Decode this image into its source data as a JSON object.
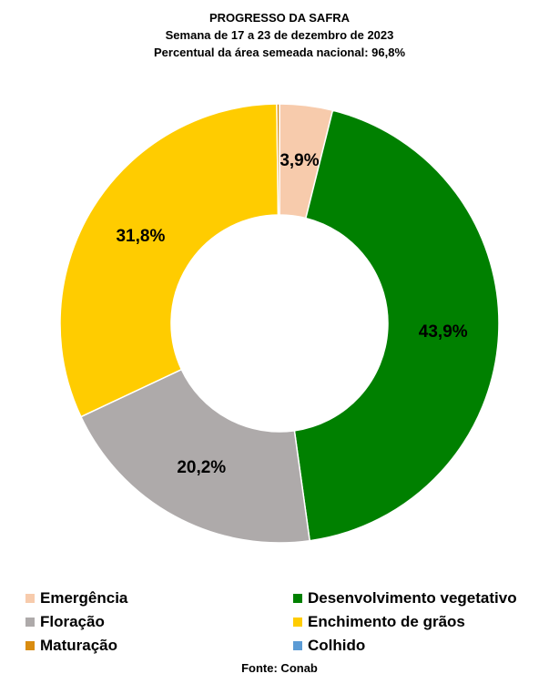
{
  "chart_data": {
    "type": "pie",
    "title": "PROGRESSO DA SAFRA",
    "subtitle": "Semana de 17 a 23 de dezembro de 2023",
    "subtitle2": "Percentual da área semeada nacional: 96,8%",
    "source": "Fonte: Conab",
    "legend_position": "bottom",
    "donut": true,
    "slices": [
      {
        "name": "Emergência",
        "value": 3.9,
        "label": "3,9%",
        "color": "#F7CBAC"
      },
      {
        "name": "Desenvolvimento vegetativo",
        "value": 43.9,
        "label": "43,9%",
        "color": "#008000"
      },
      {
        "name": "Floração",
        "value": 20.2,
        "label": "20,2%",
        "color": "#AEAAAA"
      },
      {
        "name": "Enchimento de grãos",
        "value": 31.8,
        "label": "31,8%",
        "color": "#FFCC00"
      },
      {
        "name": "Maturação",
        "value": 0.2,
        "label": "",
        "color": "#D98C10"
      },
      {
        "name": "Colhido",
        "value": 0,
        "label": "",
        "color": "#5B9BD5"
      }
    ]
  }
}
